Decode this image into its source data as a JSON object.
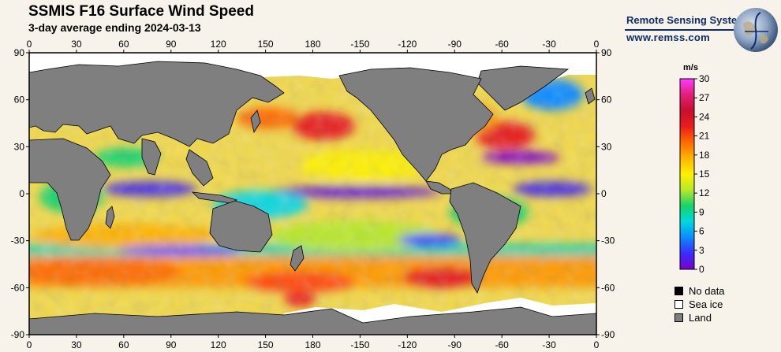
{
  "title": "SSMIS F16 Surface Wind Speed",
  "subtitle": "3-day average ending 2024-03-13",
  "brand": {
    "name": "Remote Sensing Systems",
    "url": "www.remss.com"
  },
  "map": {
    "lon_ticks": [
      "0",
      "30",
      "60",
      "90",
      "120",
      "150",
      "180",
      "-150",
      "-120",
      "-90",
      "-60",
      "-30",
      "0"
    ],
    "lat_ticks": [
      "90",
      "60",
      "30",
      "0",
      "-30",
      "-60",
      "-90"
    ]
  },
  "colorbar": {
    "units": "m/s",
    "min": 0,
    "max": 30,
    "ticks": [
      "30",
      "27",
      "24",
      "21",
      "18",
      "15",
      "12",
      "9",
      "6",
      "3",
      "0"
    ],
    "colors": [
      "#7b00c8",
      "#3a2cff",
      "#0a8cff",
      "#00d8e0",
      "#17d36a",
      "#b8e82a",
      "#fff100",
      "#ffb400",
      "#ff6a00",
      "#e81c1c",
      "#c8102e",
      "#e0207a",
      "#ff3cff"
    ]
  },
  "legend": [
    {
      "label": "No data",
      "color": "#000000"
    },
    {
      "label": "Sea ice",
      "color": "#ffffff"
    },
    {
      "label": "Land",
      "color": "#7f7f7f"
    }
  ]
}
